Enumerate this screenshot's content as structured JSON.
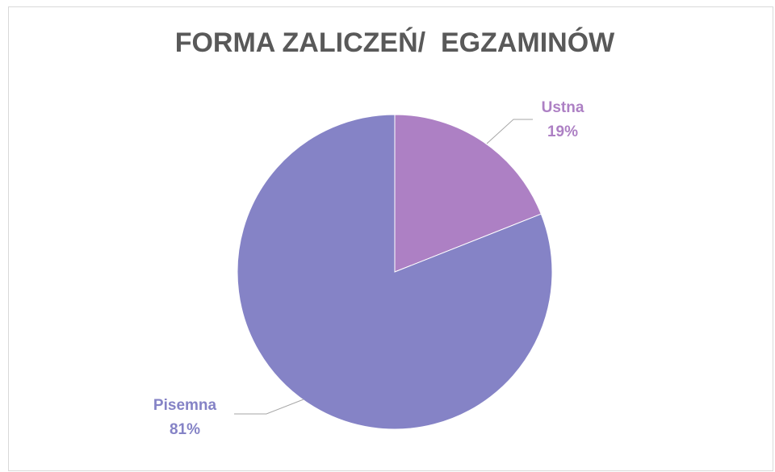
{
  "chart_data": {
    "type": "pie",
    "title": "FORMA ZALICZEŃ/  EGZAMINÓW",
    "categories": [
      "Ustna",
      "Pisemna"
    ],
    "values": [
      19,
      81
    ],
    "value_labels": [
      "19%",
      "81%"
    ],
    "colors": [
      "#ad80c4",
      "#8583c6"
    ]
  }
}
